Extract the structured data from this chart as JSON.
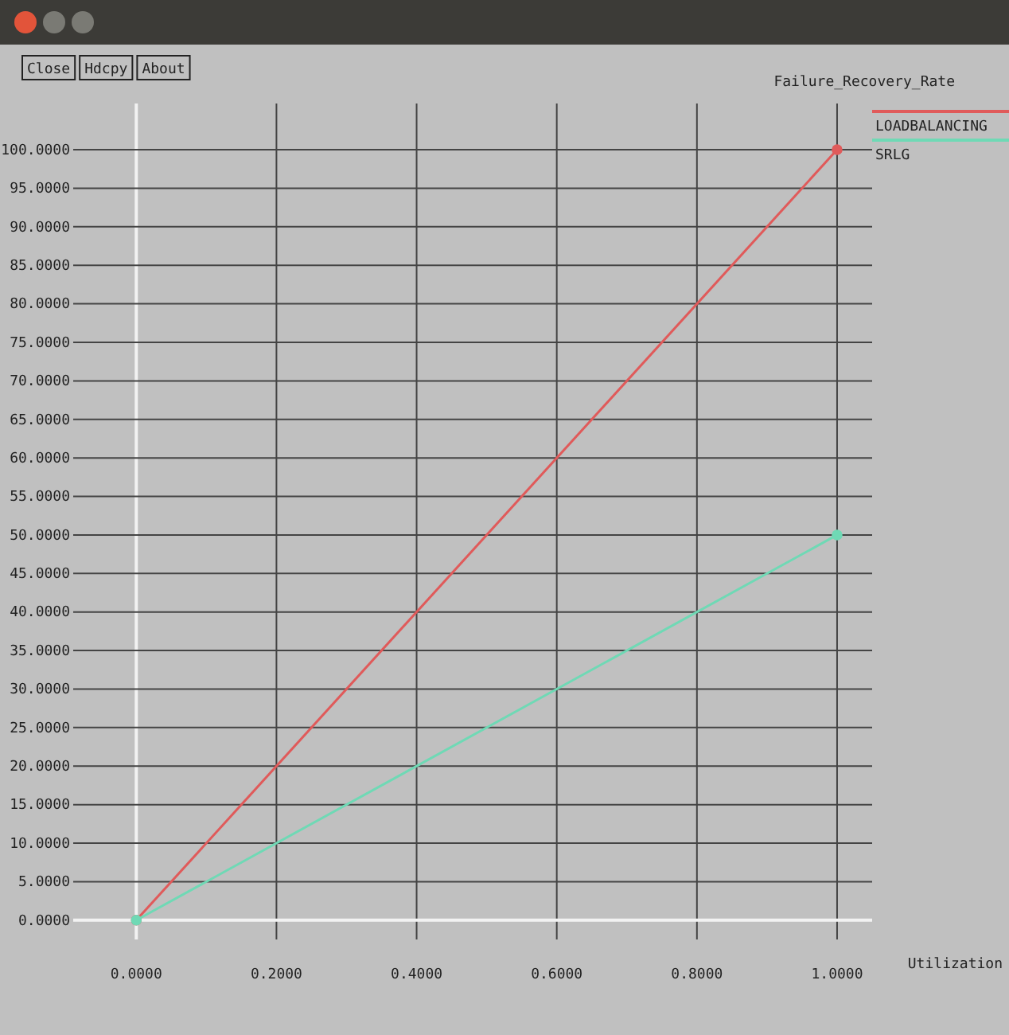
{
  "chart_data": {
    "type": "line",
    "title": "Failure_Recovery_Rate",
    "xlabel": "Utilization",
    "annotations": [
      "Close",
      "Hdcpy",
      "About"
    ],
    "x": [
      0,
      1
    ],
    "series": [
      {
        "name": "LOADBALANCING",
        "color": "#e05a5a",
        "values": [
          0,
          100
        ]
      },
      {
        "name": "SRLG",
        "color": "#6fd9b5",
        "values": [
          0,
          50
        ]
      }
    ],
    "xlim": [
      -0.09,
      1.05
    ],
    "ylim": [
      -2.5,
      106
    ],
    "xticks": [
      {
        "value": 0,
        "label": "0.0000"
      },
      {
        "value": 0.2,
        "label": "0.2000"
      },
      {
        "value": 0.4,
        "label": "0.4000"
      },
      {
        "value": 0.6,
        "label": "0.6000"
      },
      {
        "value": 0.8,
        "label": "0.8000"
      },
      {
        "value": 1,
        "label": "1.0000"
      }
    ],
    "yticks": [
      {
        "value": 0,
        "label": "0.0000"
      },
      {
        "value": 5,
        "label": "5.0000"
      },
      {
        "value": 10,
        "label": "10.0000"
      },
      {
        "value": 15,
        "label": "15.0000"
      },
      {
        "value": 20,
        "label": "20.0000"
      },
      {
        "value": 25,
        "label": "25.0000"
      },
      {
        "value": 30,
        "label": "30.0000"
      },
      {
        "value": 35,
        "label": "35.0000"
      },
      {
        "value": 40,
        "label": "40.0000"
      },
      {
        "value": 45,
        "label": "45.0000"
      },
      {
        "value": 50,
        "label": "50.0000"
      },
      {
        "value": 55,
        "label": "55.0000"
      },
      {
        "value": 60,
        "label": "60.0000"
      },
      {
        "value": 65,
        "label": "65.0000"
      },
      {
        "value": 70,
        "label": "70.0000"
      },
      {
        "value": 75,
        "label": "75.0000"
      },
      {
        "value": 80,
        "label": "80.0000"
      },
      {
        "value": 85,
        "label": "85.0000"
      },
      {
        "value": 90,
        "label": "90.0000"
      },
      {
        "value": 95,
        "label": "95.0000"
      },
      {
        "value": 100,
        "label": "100.0000"
      }
    ],
    "grid": true,
    "legend": "top right",
    "marker": "circle",
    "line_style": "solid"
  }
}
